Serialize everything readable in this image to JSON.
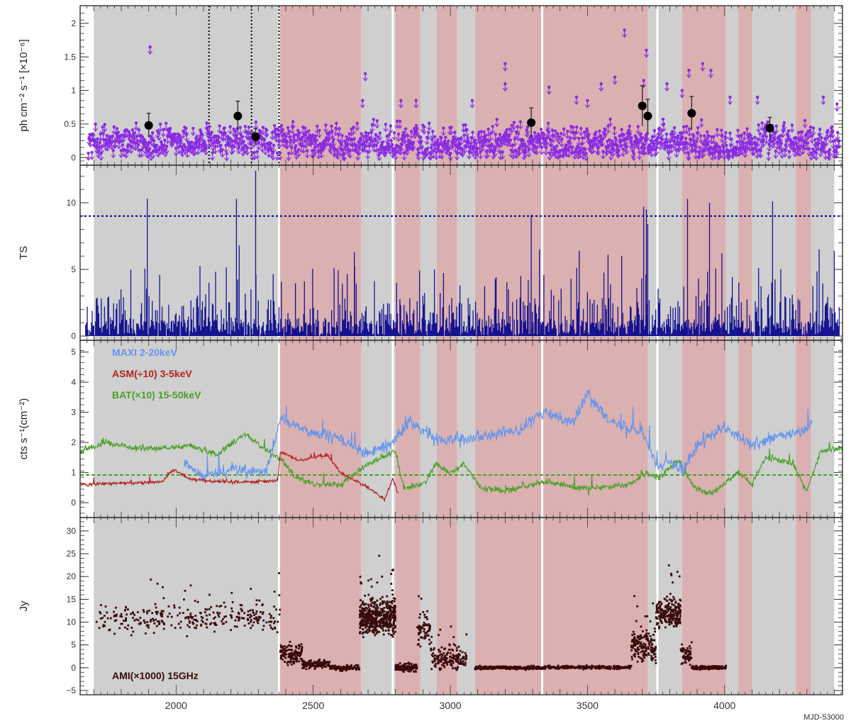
{
  "chart_data": {
    "type": "multi-panel-timeseries",
    "x_label": "MJD-53000",
    "x_range": [
      1650,
      4430
    ],
    "x_ticks": [
      2000,
      2500,
      3000,
      3500,
      4000
    ],
    "x_tick_labels": [
      "2000",
      "2500",
      "3000",
      "3500",
      "4000"
    ],
    "colors": {
      "grey_band": "#cfcfcf",
      "red_band": "#dbb0b0",
      "upper_limit": "#8a2be2",
      "detection": "#000000",
      "ts_line": "#00008b",
      "maxi": "#6495ed",
      "asm": "#b22222",
      "bat": "#4aa02a",
      "ami": "#3a0a0a"
    },
    "state_bands": [
      {
        "state": "grey",
        "x0": 1700,
        "x1": 2375
      },
      {
        "state": "red",
        "x0": 2375,
        "x1": 2675
      },
      {
        "state": "grey",
        "x0": 2675,
        "x1": 2800
      },
      {
        "state": "red",
        "x0": 2800,
        "x1": 2890
      },
      {
        "state": "grey",
        "x0": 2890,
        "x1": 2950
      },
      {
        "state": "red",
        "x0": 2950,
        "x1": 3025
      },
      {
        "state": "grey",
        "x0": 3025,
        "x1": 3090
      },
      {
        "state": "red",
        "x0": 3090,
        "x1": 3335
      },
      {
        "state": "red",
        "x0": 3335,
        "x1": 3720
      },
      {
        "state": "grey",
        "x0": 3720,
        "x1": 3845
      },
      {
        "state": "red",
        "x0": 3845,
        "x1": 4005
      },
      {
        "state": "grey",
        "x0": 4005,
        "x1": 4050
      },
      {
        "state": "red",
        "x0": 4050,
        "x1": 4100
      },
      {
        "state": "grey",
        "x0": 4100,
        "x1": 4260
      },
      {
        "state": "red",
        "x0": 4260,
        "x1": 4315
      },
      {
        "state": "grey",
        "x0": 4315,
        "x1": 4400
      }
    ],
    "white_lines": [
      2375,
      2790,
      3335,
      3755
    ],
    "panels": [
      {
        "name": "fermi-flux",
        "ylabel": "ph cm⁻² s⁻¹ [×10⁻⁶]",
        "ylim": [
          -0.05,
          2.2
        ],
        "y_ticks": [
          0,
          0.5,
          1,
          1.5,
          2
        ],
        "y_tick_labels": [
          "0",
          "0.5",
          "1",
          "1.5",
          "2"
        ],
        "dotted_vlines": [
          2120,
          2275,
          2375
        ],
        "detections": [
          {
            "x": 1900,
            "y": 0.48,
            "err": 0.18
          },
          {
            "x": 2225,
            "y": 0.62,
            "err": 0.22
          },
          {
            "x": 2290,
            "y": 0.31,
            "err": 0.12
          },
          {
            "x": 3295,
            "y": 0.52,
            "err": 0.22
          },
          {
            "x": 3700,
            "y": 0.77,
            "err": 0.3
          },
          {
            "x": 3720,
            "y": 0.62,
            "err": 0.25
          },
          {
            "x": 3880,
            "y": 0.66,
            "err": 0.25
          },
          {
            "x": 4165,
            "y": 0.44,
            "err": 0.16
          }
        ],
        "upper_limits": {
          "min": 0.06,
          "max": 0.58,
          "step_days": 2.6,
          "high_points": [
            [
              1905,
              1.65
            ],
            [
              2690,
              1.25
            ],
            [
              3200,
              1.4
            ],
            [
              3200,
              1.1
            ],
            [
              2820,
              0.85
            ],
            [
              2680,
              0.85
            ],
            [
              3360,
              1.05
            ],
            [
              3460,
              0.9
            ],
            [
              3550,
              1.1
            ],
            [
              3600,
              1.2
            ],
            [
              3635,
              1.9
            ],
            [
              3715,
              1.6
            ],
            [
              3705,
              1.15
            ],
            [
              3790,
              1.1
            ],
            [
              3870,
              1.3
            ],
            [
              3950,
              1.3
            ],
            [
              3920,
              1.4
            ],
            [
              4020,
              0.9
            ],
            [
              4120,
              0.9
            ],
            [
              4360,
              0.9
            ],
            [
              4410,
              0.8
            ],
            [
              2875,
              0.85
            ],
            [
              3080,
              0.85
            ],
            [
              3500,
              0.85
            ],
            [
              3845,
              1.0
            ]
          ]
        }
      },
      {
        "name": "ts",
        "ylabel": "TS",
        "ylim": [
          0,
          12.5
        ],
        "y_ticks": [
          0,
          5,
          10
        ],
        "y_tick_labels": [
          "0",
          "5",
          "10"
        ],
        "threshold": 9,
        "tall_spikes": [
          [
            1895,
            10.3
          ],
          [
            2220,
            10.3
          ],
          [
            2290,
            12.4
          ],
          [
            3295,
            9.1
          ],
          [
            3705,
            9.7
          ],
          [
            3715,
            9.5
          ],
          [
            3720,
            8.4
          ],
          [
            3865,
            10.3
          ],
          [
            3945,
            10.0
          ],
          [
            4175,
            10.1
          ],
          [
            4400,
            6.4
          ],
          [
            2230,
            6.8
          ],
          [
            3325,
            6.5
          ],
          [
            2650,
            6.3
          ],
          [
            3470,
            6.4
          ],
          [
            3575,
            6.1
          ],
          [
            3625,
            6.0
          ],
          [
            3990,
            6.2
          ],
          [
            4345,
            6.5
          ]
        ]
      },
      {
        "name": "xray",
        "ylabel": "cts s⁻¹(cm⁻²)",
        "ylim": [
          -0.35,
          5.25
        ],
        "y_ticks": [
          0,
          1,
          2,
          3,
          4,
          5
        ],
        "y_tick_labels": [
          "0",
          "1",
          "2",
          "3",
          "4",
          "5"
        ],
        "bat_reference": 0.92,
        "legend": [
          {
            "label": "MAXI 2-20keV",
            "color": "#6495ed"
          },
          {
            "label": "ASM(÷10) 3-5keV",
            "color": "#b22222"
          },
          {
            "label": "BAT(×10) 15-50keV",
            "color": "#4aa02a"
          }
        ],
        "series": [
          {
            "name": "MAXI 2-20keV",
            "color": "#6495ed",
            "x_range": [
              2030,
              4320
            ],
            "noise": 0.35,
            "knots": [
              [
                2030,
                1.3
              ],
              [
                2100,
                0.9
              ],
              [
                2200,
                1.1
              ],
              [
                2330,
                1.0
              ],
              [
                2380,
                2.8
              ],
              [
                2470,
                2.4
              ],
              [
                2600,
                2.1
              ],
              [
                2700,
                1.6
              ],
              [
                2790,
                2.0
              ],
              [
                2850,
                2.7
              ],
              [
                2950,
                2.1
              ],
              [
                3100,
                2.2
              ],
              [
                3250,
                2.4
              ],
              [
                3340,
                3.0
              ],
              [
                3450,
                2.7
              ],
              [
                3500,
                3.6
              ],
              [
                3600,
                2.6
              ],
              [
                3700,
                2.4
              ],
              [
                3760,
                1.1
              ],
              [
                3800,
                1.4
              ],
              [
                3850,
                1.1
              ],
              [
                3900,
                1.9
              ],
              [
                4000,
                2.5
              ],
              [
                4100,
                1.9
              ],
              [
                4200,
                2.2
              ],
              [
                4300,
                2.4
              ],
              [
                4320,
                2.7
              ]
            ]
          },
          {
            "name": "ASM(÷10) 3-5keV",
            "color": "#b22222",
            "x_range": [
              1650,
              2810
            ],
            "noise": 0.1,
            "knots": [
              [
                1650,
                0.6
              ],
              [
                1800,
                0.65
              ],
              [
                1950,
                0.7
              ],
              [
                1990,
                1.1
              ],
              [
                2050,
                0.8
              ],
              [
                2150,
                0.7
              ],
              [
                2250,
                0.7
              ],
              [
                2370,
                0.72
              ],
              [
                2380,
                1.7
              ],
              [
                2450,
                1.4
              ],
              [
                2550,
                1.6
              ],
              [
                2600,
                1.0
              ],
              [
                2700,
                0.5
              ],
              [
                2760,
                0.1
              ],
              [
                2790,
                0.8
              ],
              [
                2810,
                0.3
              ]
            ]
          },
          {
            "name": "BAT(×10) 15-50keV",
            "color": "#4aa02a",
            "x_range": [
              1650,
              4430
            ],
            "noise": 0.18,
            "knots": [
              [
                1650,
                1.7
              ],
              [
                1750,
                2.0
              ],
              [
                1850,
                1.8
              ],
              [
                1950,
                1.8
              ],
              [
                2050,
                1.9
              ],
              [
                2150,
                1.6
              ],
              [
                2250,
                2.3
              ],
              [
                2350,
                1.6
              ],
              [
                2390,
                1.4
              ],
              [
                2430,
                0.9
              ],
              [
                2500,
                0.6
              ],
              [
                2600,
                0.6
              ],
              [
                2700,
                1.3
              ],
              [
                2800,
                1.7
              ],
              [
                2830,
                0.5
              ],
              [
                2900,
                0.6
              ],
              [
                2950,
                1.3
              ],
              [
                3000,
                1.0
              ],
              [
                3050,
                1.3
              ],
              [
                3110,
                0.5
              ],
              [
                3200,
                0.4
              ],
              [
                3300,
                0.6
              ],
              [
                3360,
                0.7
              ],
              [
                3450,
                0.5
              ],
              [
                3550,
                0.5
              ],
              [
                3650,
                0.6
              ],
              [
                3720,
                1.0
              ],
              [
                3760,
                0.8
              ],
              [
                3830,
                1.4
              ],
              [
                3890,
                0.5
              ],
              [
                3950,
                0.3
              ],
              [
                4050,
                1.0
              ],
              [
                4100,
                0.6
              ],
              [
                4150,
                1.5
              ],
              [
                4250,
                1.3
              ],
              [
                4300,
                0.4
              ],
              [
                4350,
                1.7
              ],
              [
                4430,
                1.8
              ]
            ]
          }
        ]
      },
      {
        "name": "radio",
        "ylabel": "Jy",
        "ylim": [
          -5,
          32
        ],
        "y_ticks": [
          -5,
          0,
          5,
          10,
          15,
          20,
          25,
          30
        ],
        "y_tick_labels": [
          "−5",
          "0",
          "5",
          "10",
          "15",
          "20",
          "25",
          "30"
        ],
        "label": "AMI(×1000) 15GHz",
        "series": {
          "name": "AMI(×1000) 15GHz",
          "segments": [
            {
              "x0": 1710,
              "x1": 2380,
              "level": 11,
              "spread": 4.5,
              "count": 300
            },
            {
              "x0": 2380,
              "x1": 2460,
              "level": 3,
              "spread": 3,
              "count": 140
            },
            {
              "x0": 2460,
              "x1": 2560,
              "level": 0.8,
              "spread": 1.2,
              "count": 140
            },
            {
              "x0": 2560,
              "x1": 2670,
              "level": 0,
              "spread": 0.8,
              "count": 110
            },
            {
              "x0": 2670,
              "x1": 2800,
              "level": 11,
              "spread": 5,
              "count": 520
            },
            {
              "x0": 2800,
              "x1": 2880,
              "level": 0,
              "spread": 1.2,
              "count": 140
            },
            {
              "x0": 2880,
              "x1": 2930,
              "level": 8,
              "spread": 5,
              "count": 70
            },
            {
              "x0": 2930,
              "x1": 3060,
              "level": 2,
              "spread": 3.5,
              "count": 170
            },
            {
              "x0": 3090,
              "x1": 3350,
              "level": 0,
              "spread": 0.5,
              "count": 260
            },
            {
              "x0": 3350,
              "x1": 3660,
              "level": 0.1,
              "spread": 0.5,
              "count": 220
            },
            {
              "x0": 3660,
              "x1": 3750,
              "level": 5,
              "spread": 5,
              "count": 170
            },
            {
              "x0": 3750,
              "x1": 3840,
              "level": 12,
              "spread": 4.5,
              "count": 220
            },
            {
              "x0": 3840,
              "x1": 3880,
              "level": 3,
              "spread": 3,
              "count": 60
            },
            {
              "x0": 3880,
              "x1": 4005,
              "level": 0,
              "spread": 0.5,
              "count": 200
            }
          ]
        }
      }
    ]
  }
}
